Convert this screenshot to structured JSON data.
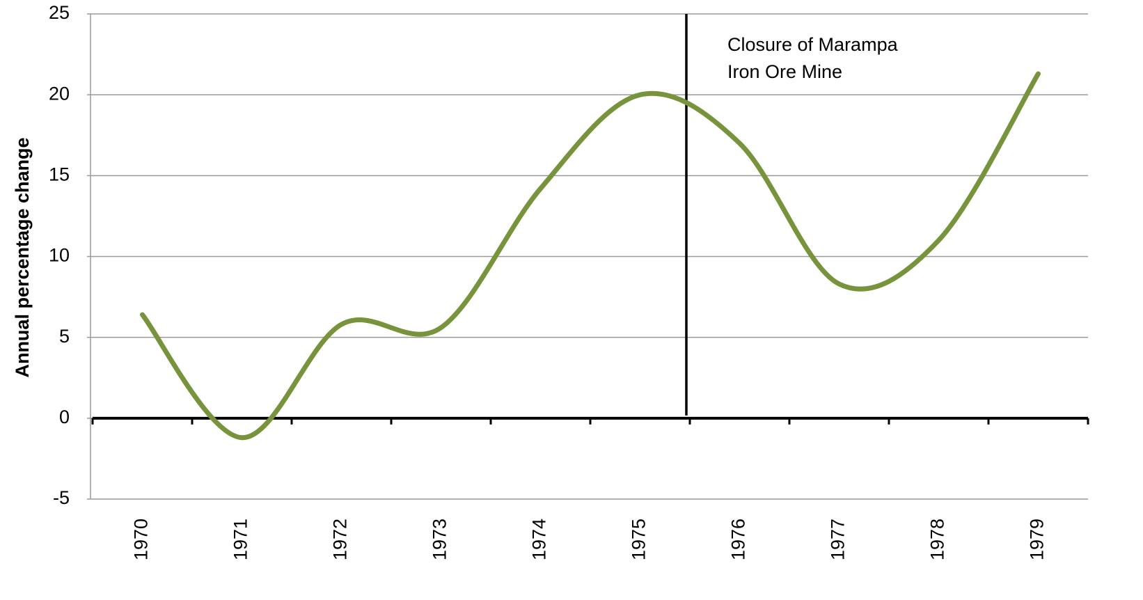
{
  "chart_data": {
    "type": "line",
    "y_label": "Annual percentage  change",
    "annotation": [
      "Closure of Marampa",
      "Iron Ore Mine"
    ],
    "categories": [
      "1970",
      "1971",
      "1972",
      "1973",
      "1974",
      "1975",
      "1976",
      "1977",
      "1978",
      "1979"
    ],
    "values": [
      6.4,
      -1.2,
      5.8,
      5.6,
      14.2,
      20.0,
      17.0,
      8.3,
      11.0,
      21.3
    ],
    "color": "#77933c",
    "ylim": [
      -5,
      25
    ],
    "yticks": [
      -5,
      0,
      5,
      10,
      15,
      20,
      25
    ],
    "grid": true,
    "smooth": true
  }
}
